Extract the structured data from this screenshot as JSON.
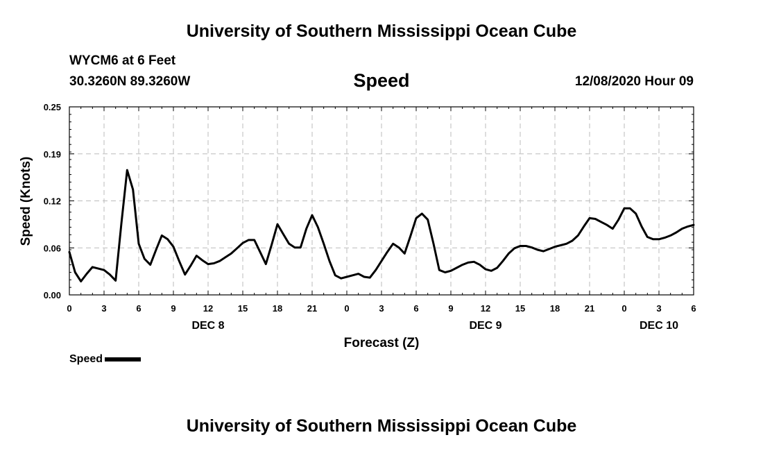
{
  "header": {
    "title": "University of Southern Mississippi Ocean Cube",
    "station": "WYCM6 at 6 Feet",
    "coords": "30.3260N 89.3260W",
    "timestamp": "12/08/2020 Hour 09"
  },
  "footer": {
    "title": "University of Southern Mississippi Ocean Cube"
  },
  "legend": {
    "label": "Speed"
  },
  "colors": {
    "line": "#000000",
    "grid": "#bbbbbb"
  },
  "chart_data": {
    "type": "line",
    "title": "Speed",
    "xlabel": "Forecast (Z)",
    "ylabel": "Speed (Knots)",
    "xlim": [
      0,
      54
    ],
    "ylim": [
      0,
      0.25
    ],
    "grid": true,
    "legend_position": "bottom-left",
    "x_ticks": [
      {
        "x": 0,
        "label": "0"
      },
      {
        "x": 3,
        "label": "3"
      },
      {
        "x": 6,
        "label": "6"
      },
      {
        "x": 9,
        "label": "9"
      },
      {
        "x": 12,
        "label": "12"
      },
      {
        "x": 15,
        "label": "15"
      },
      {
        "x": 18,
        "label": "18"
      },
      {
        "x": 21,
        "label": "21"
      },
      {
        "x": 24,
        "label": "0"
      },
      {
        "x": 27,
        "label": "3"
      },
      {
        "x": 30,
        "label": "6"
      },
      {
        "x": 33,
        "label": "9"
      },
      {
        "x": 36,
        "label": "12"
      },
      {
        "x": 39,
        "label": "15"
      },
      {
        "x": 42,
        "label": "18"
      },
      {
        "x": 45,
        "label": "21"
      },
      {
        "x": 48,
        "label": "0"
      },
      {
        "x": 51,
        "label": "3"
      },
      {
        "x": 54,
        "label": "6"
      }
    ],
    "y_ticks": [
      {
        "y": 0,
        "label": "0.00"
      },
      {
        "y": 0.0625,
        "label": "0.06"
      },
      {
        "y": 0.125,
        "label": "0.12"
      },
      {
        "y": 0.1875,
        "label": "0.19"
      },
      {
        "y": 0.25,
        "label": "0.25"
      }
    ],
    "day_labels": [
      {
        "x": 12,
        "label": "DEC 8"
      },
      {
        "x": 36,
        "label": "DEC 9"
      },
      {
        "x": 51,
        "label": "DEC 10"
      }
    ],
    "series": [
      {
        "name": "Speed",
        "x": [
          0,
          0.5,
          1,
          1.5,
          2,
          2.5,
          3,
          3.5,
          4,
          4.5,
          5,
          5.5,
          6,
          6.5,
          7,
          7.5,
          8,
          8.5,
          9,
          9.5,
          10,
          10.5,
          11,
          11.5,
          12,
          12.5,
          13,
          13.5,
          14,
          14.5,
          15,
          15.5,
          16,
          16.5,
          17,
          17.5,
          18,
          18.5,
          19,
          19.5,
          20,
          20.5,
          21,
          21.5,
          22,
          22.5,
          23,
          23.5,
          24,
          24.5,
          25,
          25.5,
          26,
          26.5,
          27,
          27.5,
          28,
          28.5,
          29,
          29.5,
          30,
          30.5,
          31,
          31.5,
          32,
          32.5,
          33,
          33.5,
          34,
          34.5,
          35,
          35.5,
          36,
          36.5,
          37,
          37.5,
          38,
          38.5,
          39,
          39.5,
          40,
          40.5,
          41,
          41.5,
          42,
          42.5,
          43,
          43.5,
          44,
          44.5,
          45,
          45.5,
          46,
          46.5,
          47,
          47.5,
          48,
          48.5,
          49,
          49.5,
          50,
          50.5,
          51,
          51.5,
          52,
          52.5,
          53,
          53.5,
          54
        ],
        "y": [
          0.057,
          0.03,
          0.018,
          0.028,
          0.037,
          0.035,
          0.033,
          0.027,
          0.019,
          0.095,
          0.166,
          0.14,
          0.068,
          0.048,
          0.04,
          0.06,
          0.079,
          0.074,
          0.064,
          0.045,
          0.027,
          0.039,
          0.052,
          0.046,
          0.041,
          0.042,
          0.045,
          0.05,
          0.055,
          0.062,
          0.069,
          0.073,
          0.073,
          0.057,
          0.041,
          0.067,
          0.094,
          0.081,
          0.068,
          0.063,
          0.063,
          0.088,
          0.106,
          0.09,
          0.068,
          0.045,
          0.026,
          0.022,
          0.024,
          0.026,
          0.028,
          0.024,
          0.023,
          0.033,
          0.045,
          0.057,
          0.068,
          0.063,
          0.055,
          0.078,
          0.102,
          0.108,
          0.1,
          0.068,
          0.033,
          0.03,
          0.032,
          0.036,
          0.04,
          0.043,
          0.044,
          0.04,
          0.034,
          0.032,
          0.036,
          0.045,
          0.055,
          0.062,
          0.065,
          0.065,
          0.063,
          0.06,
          0.058,
          0.061,
          0.064,
          0.066,
          0.068,
          0.072,
          0.079,
          0.091,
          0.102,
          0.101,
          0.097,
          0.093,
          0.088,
          0.1,
          0.115,
          0.115,
          0.108,
          0.091,
          0.077,
          0.074,
          0.074,
          0.076,
          0.079,
          0.083,
          0.088,
          0.091,
          0.093
        ]
      }
    ]
  }
}
